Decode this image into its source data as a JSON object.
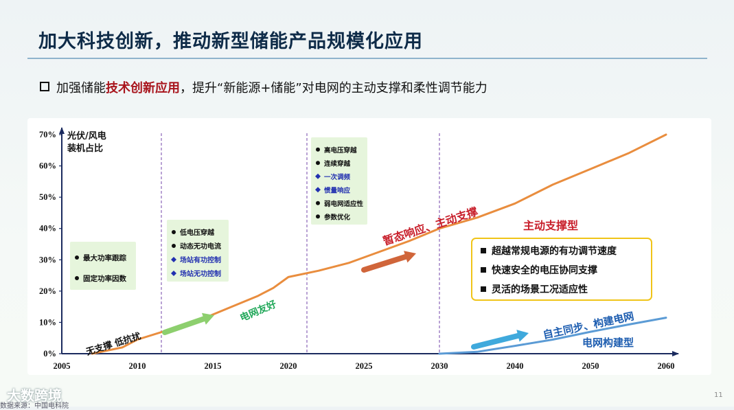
{
  "title": "加大科技创新，推动新型储能产品规模化应用",
  "subtitle": {
    "before": "加强储能",
    "highlight": "技术创新应用",
    "after": "，提升“新能源+储能”对电网的主动支撑和柔性调节能力"
  },
  "chart_data": {
    "type": "line",
    "ylabel_lines": [
      "光伏/风电",
      "装机占比"
    ],
    "x_ticks": [
      "2005",
      "2010",
      "2015",
      "2020",
      "2025",
      "2030",
      "2040",
      "2050",
      "2060"
    ],
    "y_ticks": [
      "0%",
      "10%",
      "20%",
      "30%",
      "40%",
      "50%",
      "60%",
      "70%"
    ],
    "ylim": [
      0,
      70
    ],
    "phase_boundaries": [
      "2010",
      "2020",
      "2030"
    ],
    "series": [
      {
        "color": "#e98d3e",
        "points": [
          [
            "2007",
            0
          ],
          [
            "2009",
            2
          ],
          [
            "2010",
            4.5
          ],
          [
            "2012",
            7.5
          ],
          [
            "2014",
            10.5
          ],
          [
            "2016",
            14.5
          ],
          [
            "2018",
            18.5
          ],
          [
            "2019",
            21
          ],
          [
            "2020",
            24.5
          ],
          [
            "2022",
            26.5
          ],
          [
            "2024",
            29
          ],
          [
            "2026",
            32.5
          ],
          [
            "2028",
            36
          ],
          [
            "2030",
            40
          ],
          [
            "2035",
            43.5
          ],
          [
            "2040",
            48
          ],
          [
            "2045",
            54
          ],
          [
            "2050",
            59
          ],
          [
            "2055",
            64
          ],
          [
            "2060",
            70
          ]
        ]
      },
      {
        "color": "#5b9bd5",
        "points": [
          [
            "2030",
            0
          ],
          [
            "2035",
            0.6
          ],
          [
            "2040",
            2.5
          ],
          [
            "2045",
            4.5
          ],
          [
            "2050",
            7
          ],
          [
            "2055",
            9.3
          ],
          [
            "2060",
            11.5
          ]
        ]
      }
    ],
    "annotations": {
      "phase1_label": "无支撑  低抗扰",
      "phase2_label": "电网友好",
      "phase3_label": "暂态响应、主动支撑",
      "phase4_title": "主动支撑型",
      "phase4_box": [
        "超越常规电源的有功调节速度",
        "快速安全的电压协同支撑",
        "灵活的场景工况适应性"
      ],
      "phase5_label": "自主同步、构建电网",
      "phase5_title": "电网构建型",
      "box1": [
        {
          "text": "最大功率跟踪",
          "marker": "dot"
        },
        {
          "text": "固定功率因数",
          "marker": "dot"
        }
      ],
      "box2": [
        {
          "text": "低电压穿越",
          "marker": "dot"
        },
        {
          "text": "动态无功电流",
          "marker": "dot"
        },
        {
          "text": "场站有功控制",
          "marker": "diamond"
        },
        {
          "text": "场站无功控制",
          "marker": "diamond"
        }
      ],
      "box3": [
        {
          "text": "高电压穿越",
          "marker": "dot"
        },
        {
          "text": "连续穿越",
          "marker": "dot"
        },
        {
          "text": "一次调频",
          "marker": "diamond"
        },
        {
          "text": "惯量响应",
          "marker": "diamond"
        },
        {
          "text": "弱电网适应性",
          "marker": "dot"
        },
        {
          "text": "参数优化",
          "marker": "dot"
        }
      ]
    }
  },
  "watermark": "大数跨境",
  "source_note": "数据来源：中国电科院",
  "page_number": "11"
}
